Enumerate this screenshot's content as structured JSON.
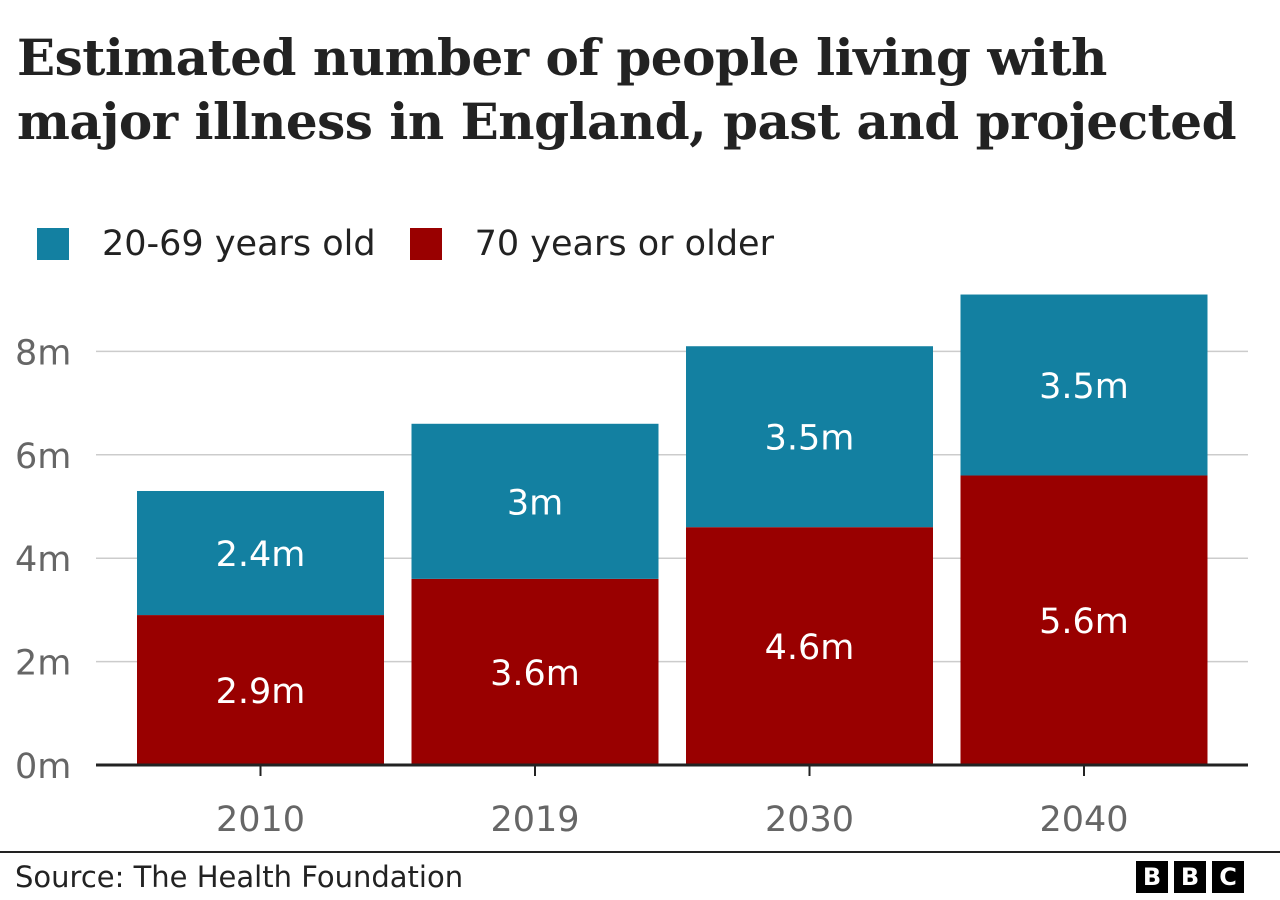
{
  "title": "Estimated number of people living with major illness in England, past and projected",
  "legend": [
    {
      "label": "20-69 years old",
      "color": "#1380A1"
    },
    {
      "label": "70 years or older",
      "color": "#990000"
    }
  ],
  "source": "Source: The Health Foundation",
  "logo": [
    "B",
    "B",
    "C"
  ],
  "chart_data": {
    "type": "bar",
    "stacked": true,
    "categories": [
      "2010",
      "2019",
      "2030",
      "2040"
    ],
    "series": [
      {
        "name": "70 years or older",
        "color": "#990000",
        "values": [
          2.9,
          3.6,
          4.6,
          5.6
        ],
        "labels": [
          "2.9m",
          "3.6m",
          "4.6m",
          "5.6m"
        ]
      },
      {
        "name": "20-69 years old",
        "color": "#1380A1",
        "values": [
          2.4,
          3.0,
          3.5,
          3.5
        ],
        "labels": [
          "2.4m",
          "3m",
          "3.5m",
          "3.5m"
        ]
      }
    ],
    "yticks": [
      0,
      2,
      4,
      6,
      8
    ],
    "ytick_labels": [
      "0m",
      "2m",
      "4m",
      "6m",
      "8m"
    ],
    "ylim": [
      0,
      9.1
    ],
    "grid": true,
    "legend_position": "top-left"
  }
}
